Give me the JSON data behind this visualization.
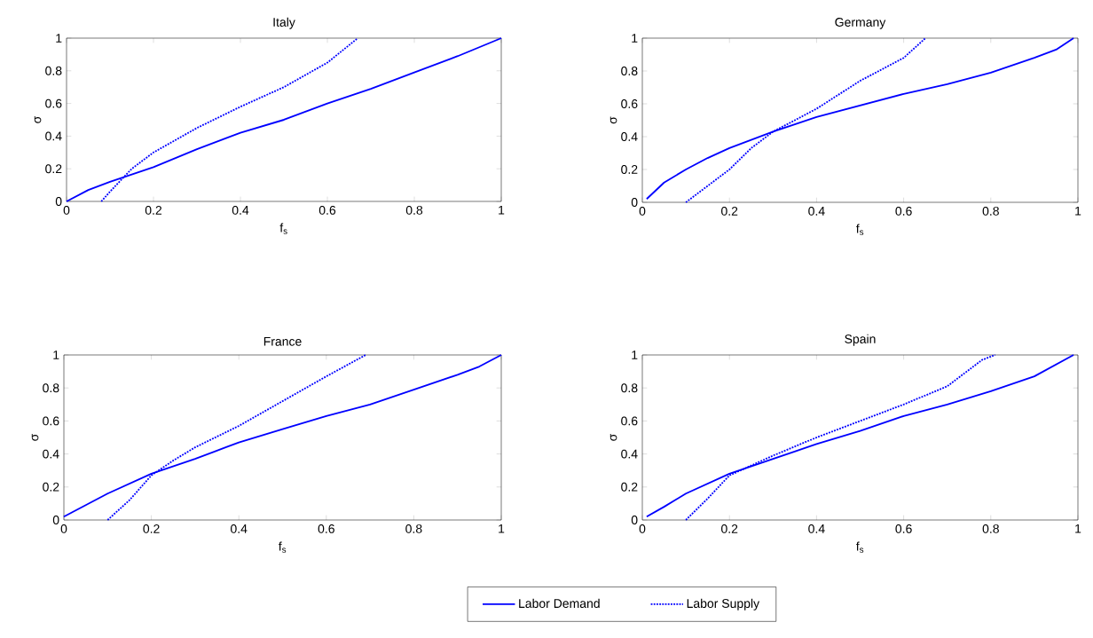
{
  "chart_data": [
    {
      "type": "line",
      "title": "Italy",
      "xlabel": "f$_{s}$",
      "ylabel": "σ",
      "xlim": [
        0,
        1
      ],
      "ylim": [
        0,
        1
      ],
      "xticks": [
        0,
        0.2,
        0.4,
        0.6,
        0.8,
        1
      ],
      "yticks": [
        0,
        0.2,
        0.4,
        0.6,
        0.8,
        1
      ],
      "grid": false,
      "legend": false,
      "marker": "none",
      "series": [
        {
          "color": "#0000ff",
          "line_style": "solid",
          "x": [
            0,
            0.05,
            0.1,
            0.2,
            0.3,
            0.4,
            0.5,
            0.6,
            0.7,
            0.8,
            0.9,
            1
          ],
          "values": [
            0,
            0.07,
            0.12,
            0.21,
            0.32,
            0.42,
            0.5,
            0.6,
            0.69,
            0.79,
            0.89,
            1
          ]
        },
        {
          "color": "#0000ff",
          "line_style": "dotted",
          "x": [
            0.08,
            0.1,
            0.15,
            0.2,
            0.3,
            0.4,
            0.5,
            0.6,
            0.67
          ],
          "values": [
            0,
            0.06,
            0.2,
            0.3,
            0.45,
            0.58,
            0.7,
            0.85,
            1
          ]
        }
      ]
    },
    {
      "type": "line",
      "title": "Germany",
      "xlabel": "f$_{s}$",
      "ylabel": "σ",
      "xlim": [
        0,
        1
      ],
      "ylim": [
        0,
        1
      ],
      "xticks": [
        0,
        0.2,
        0.4,
        0.6,
        0.8,
        1
      ],
      "yticks": [
        0,
        0.2,
        0.4,
        0.6,
        0.8,
        1
      ],
      "grid": false,
      "legend": false,
      "marker": "none",
      "series": [
        {
          "color": "#0000ff",
          "line_style": "solid",
          "x": [
            0.01,
            0.05,
            0.1,
            0.15,
            0.2,
            0.3,
            0.4,
            0.5,
            0.6,
            0.7,
            0.8,
            0.9,
            0.95,
            0.99
          ],
          "values": [
            0.02,
            0.12,
            0.2,
            0.27,
            0.33,
            0.43,
            0.52,
            0.59,
            0.66,
            0.72,
            0.79,
            0.88,
            0.93,
            1
          ]
        },
        {
          "color": "#0000ff",
          "line_style": "dotted",
          "x": [
            0.1,
            0.15,
            0.2,
            0.25,
            0.3,
            0.4,
            0.5,
            0.6,
            0.65
          ],
          "values": [
            0,
            0.1,
            0.2,
            0.33,
            0.43,
            0.57,
            0.74,
            0.88,
            1
          ]
        }
      ]
    },
    {
      "type": "line",
      "title": "France",
      "xlabel": "f$_{s}$",
      "ylabel": "σ",
      "xlim": [
        0,
        1
      ],
      "ylim": [
        0,
        1
      ],
      "xticks": [
        0,
        0.2,
        0.4,
        0.6,
        0.8,
        1
      ],
      "yticks": [
        0,
        0.2,
        0.4,
        0.6,
        0.8,
        1
      ],
      "grid": false,
      "legend": false,
      "marker": "none",
      "series": [
        {
          "color": "#0000ff",
          "line_style": "solid",
          "x": [
            0,
            0.05,
            0.1,
            0.2,
            0.3,
            0.4,
            0.5,
            0.6,
            0.7,
            0.8,
            0.9,
            0.95,
            1
          ],
          "values": [
            0.02,
            0.09,
            0.16,
            0.28,
            0.37,
            0.47,
            0.55,
            0.63,
            0.7,
            0.79,
            0.88,
            0.93,
            1
          ]
        },
        {
          "color": "#0000ff",
          "line_style": "dotted",
          "x": [
            0.1,
            0.15,
            0.2,
            0.25,
            0.3,
            0.4,
            0.5,
            0.6,
            0.69
          ],
          "values": [
            0,
            0.12,
            0.27,
            0.36,
            0.44,
            0.57,
            0.72,
            0.87,
            1
          ]
        }
      ]
    },
    {
      "type": "line",
      "title": "Spain",
      "xlabel": "f$_{s}$",
      "ylabel": "σ",
      "xlim": [
        0,
        1
      ],
      "ylim": [
        0,
        1
      ],
      "xticks": [
        0,
        0.2,
        0.4,
        0.6,
        0.8,
        1
      ],
      "yticks": [
        0,
        0.2,
        0.4,
        0.6,
        0.8,
        1
      ],
      "grid": false,
      "legend": "bottom",
      "marker": "none",
      "series": [
        {
          "name": "Labor Demand",
          "color": "#0000ff",
          "line_style": "solid",
          "x": [
            0.01,
            0.05,
            0.1,
            0.2,
            0.3,
            0.4,
            0.5,
            0.6,
            0.7,
            0.8,
            0.9,
            0.99
          ],
          "values": [
            0.02,
            0.08,
            0.16,
            0.28,
            0.37,
            0.46,
            0.54,
            0.63,
            0.7,
            0.78,
            0.87,
            1
          ]
        },
        {
          "name": "Labor Supply",
          "color": "#0000ff",
          "line_style": "dotted",
          "x": [
            0.1,
            0.15,
            0.2,
            0.3,
            0.4,
            0.5,
            0.6,
            0.7,
            0.78,
            0.81
          ],
          "values": [
            0,
            0.13,
            0.27,
            0.39,
            0.5,
            0.6,
            0.7,
            0.81,
            0.97,
            1
          ]
        }
      ]
    }
  ]
}
